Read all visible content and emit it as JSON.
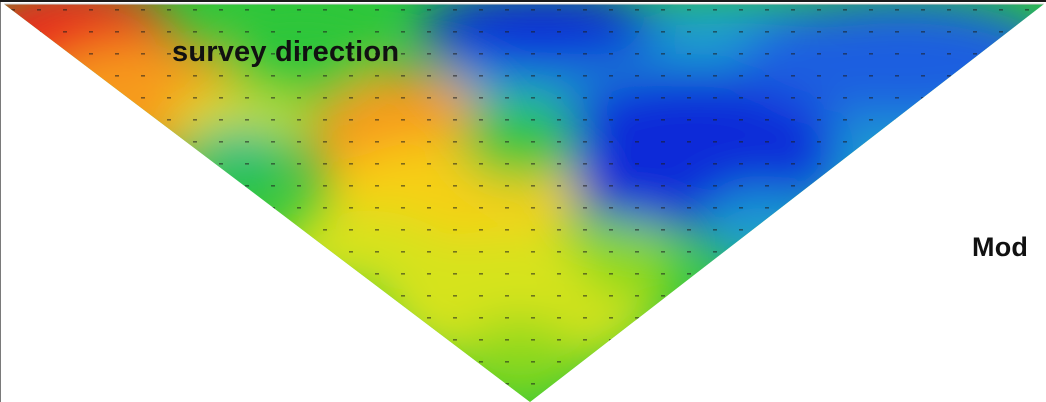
{
  "labels": {
    "survey_direction": "survey direction",
    "side_label": "Mod"
  },
  "colors": {
    "scale": [
      "#0a2cd8",
      "#1a5fe0",
      "#1a9ed0",
      "#20bb90",
      "#2ec63a",
      "#8ad81c",
      "#d6e31c",
      "#f7cf16",
      "#f79a1a",
      "#f06018",
      "#e82a1a"
    ],
    "background": "#ffffff",
    "label": "#111111"
  }
}
